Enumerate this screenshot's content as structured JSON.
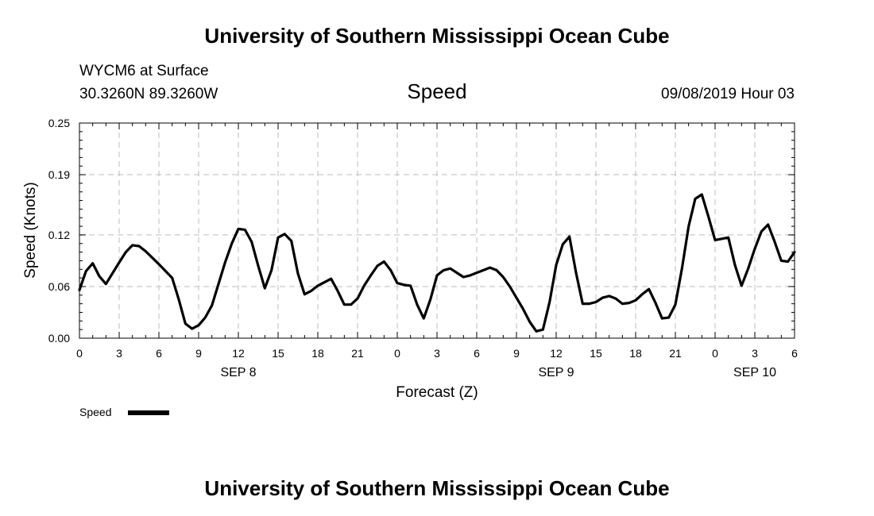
{
  "header": {
    "title": "University of Southern Mississippi Ocean Cube",
    "station": "WYCM6 at Surface",
    "location": "30.3260N 89.3260W",
    "variable": "Speed",
    "datetime": "09/08/2019 Hour 03"
  },
  "footer": {
    "title": "University of Southern Mississippi Ocean Cube"
  },
  "chart_data": {
    "type": "line",
    "xlabel": "Forecast (Z)",
    "ylabel": "Speed (Knots)",
    "ylim": [
      0,
      0.25
    ],
    "xlim": [
      0,
      54
    ],
    "x_unit": "forecast hour",
    "y_ticks": [
      0.0,
      0.06,
      0.12,
      0.19,
      0.25
    ],
    "y_tick_labels": [
      "0.00",
      "0.06",
      "0.12",
      "0.19",
      "0.25"
    ],
    "x_ticks": [
      0,
      3,
      6,
      9,
      12,
      15,
      18,
      21,
      24,
      27,
      30,
      33,
      36,
      39,
      42,
      45,
      48,
      51,
      54
    ],
    "x_tick_labels": [
      "0",
      "3",
      "6",
      "9",
      "12",
      "15",
      "18",
      "21",
      "0",
      "3",
      "6",
      "9",
      "12",
      "15",
      "18",
      "21",
      "0",
      "3",
      "6"
    ],
    "date_labels": [
      {
        "x": 12,
        "label": "SEP 8"
      },
      {
        "x": 36,
        "label": "SEP 9"
      },
      {
        "x": 51,
        "label": "SEP 10"
      }
    ],
    "grid": true,
    "legend": "bottom-left",
    "series": [
      {
        "name": "Speed",
        "color": "#000000",
        "x": [
          0,
          0.5,
          1,
          1.5,
          2,
          3,
          3.5,
          4,
          4.5,
          5,
          6,
          7,
          7.5,
          8,
          8.5,
          9,
          9.5,
          10,
          11,
          11.5,
          12,
          12.5,
          13,
          13.5,
          14,
          14.5,
          15,
          15.5,
          16,
          16.5,
          17,
          17.5,
          18,
          19,
          19.5,
          20,
          20.5,
          21,
          21.5,
          22,
          22.5,
          23,
          23.5,
          24,
          24.5,
          25,
          25.5,
          26,
          26.5,
          27,
          27.5,
          28,
          28.5,
          29,
          29.5,
          30,
          31,
          31.5,
          32,
          32.5,
          33,
          33.5,
          34,
          34.5,
          35,
          35.5,
          36,
          36.5,
          37,
          37.5,
          38,
          38.5,
          39,
          39.5,
          40,
          40.5,
          41,
          41.5,
          42,
          42.5,
          43,
          43.5,
          44,
          44.5,
          45,
          45.5,
          46,
          46.5,
          47,
          47.5,
          48,
          49,
          49.5,
          50,
          50.5,
          51,
          51.5,
          52,
          52.5,
          53,
          53.5,
          54
        ],
        "values": [
          0.056,
          0.078,
          0.087,
          0.072,
          0.063,
          0.088,
          0.1,
          0.108,
          0.107,
          0.101,
          0.086,
          0.07,
          0.045,
          0.017,
          0.011,
          0.015,
          0.024,
          0.038,
          0.088,
          0.11,
          0.127,
          0.126,
          0.112,
          0.084,
          0.058,
          0.079,
          0.117,
          0.121,
          0.113,
          0.075,
          0.051,
          0.055,
          0.061,
          0.069,
          0.055,
          0.039,
          0.039,
          0.046,
          0.061,
          0.073,
          0.084,
          0.089,
          0.079,
          0.064,
          0.062,
          0.061,
          0.039,
          0.023,
          0.045,
          0.073,
          0.079,
          0.081,
          0.076,
          0.071,
          0.073,
          0.076,
          0.082,
          0.079,
          0.071,
          0.06,
          0.047,
          0.034,
          0.019,
          0.008,
          0.01,
          0.042,
          0.085,
          0.109,
          0.118,
          0.076,
          0.04,
          0.04,
          0.042,
          0.047,
          0.049,
          0.046,
          0.04,
          0.041,
          0.044,
          0.051,
          0.057,
          0.041,
          0.023,
          0.024,
          0.039,
          0.081,
          0.13,
          0.162,
          0.167,
          0.141,
          0.114,
          0.117,
          0.085,
          0.061,
          0.081,
          0.104,
          0.124,
          0.132,
          0.112,
          0.09,
          0.089,
          0.1
        ]
      }
    ]
  }
}
